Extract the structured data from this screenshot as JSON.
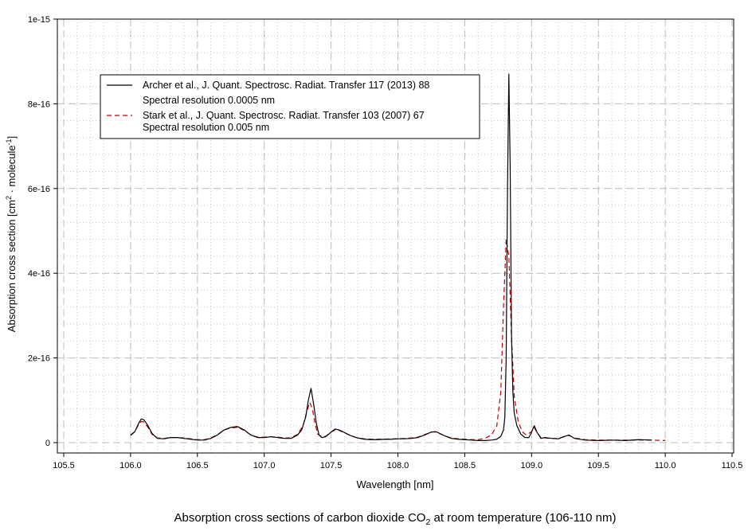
{
  "chart_data": {
    "type": "line",
    "title": "",
    "xlabel": "Wavelength [nm]",
    "ylabel": {
      "part1": "Absorption cross section [cm",
      "sup1": "2",
      "part2": " · molecule",
      "sup2": "-1",
      "part3": "]"
    },
    "xlim": [
      105.5,
      110.5
    ],
    "ylim": [
      0,
      1e-15
    ],
    "x_ticks": [
      105.5,
      106.0,
      106.5,
      107.0,
      107.5,
      108.0,
      108.5,
      109.0,
      109.5,
      110.0,
      110.5
    ],
    "x_tick_labels": [
      "105.5",
      "106.0",
      "106.5",
      "107.0",
      "107.5",
      "108.0",
      "108.5",
      "109.0",
      "109.5",
      "110.0",
      "110.5"
    ],
    "y_ticks": [
      0,
      2e-16,
      4e-16,
      6e-16,
      8e-16,
      1e-15
    ],
    "y_tick_labels": [
      "0",
      "2e-16",
      "4e-16",
      "6e-16",
      "8e-16",
      "1e-15"
    ],
    "grid": true,
    "legend_position": "top-left",
    "series": [
      {
        "name": "Archer et al., J. Quant. Spectrosc. Radiat. Transfer 117 (2013) 88",
        "note": "Spectral resolution 0.0005 nm",
        "color": "#000000",
        "dash": "solid",
        "x": [
          106.0,
          106.03,
          106.06,
          106.08,
          106.1,
          106.13,
          106.16,
          106.2,
          106.25,
          106.3,
          106.35,
          106.4,
          106.45,
          106.5,
          106.55,
          106.6,
          106.65,
          106.7,
          106.75,
          106.8,
          106.85,
          106.9,
          106.95,
          107.0,
          107.05,
          107.1,
          107.15,
          107.2,
          107.25,
          107.28,
          107.31,
          107.33,
          107.35,
          107.37,
          107.39,
          107.41,
          107.43,
          107.46,
          107.5,
          107.53,
          107.56,
          107.6,
          107.65,
          107.7,
          107.75,
          107.8,
          107.85,
          107.9,
          107.95,
          108.0,
          108.05,
          108.1,
          108.15,
          108.2,
          108.25,
          108.28,
          108.3,
          108.35,
          108.4,
          108.45,
          108.5,
          108.55,
          108.6,
          108.65,
          108.7,
          108.74,
          108.77,
          108.79,
          108.8,
          108.81,
          108.82,
          108.83,
          108.84,
          108.85,
          108.86,
          108.87,
          108.89,
          108.92,
          108.95,
          108.98,
          109.0,
          109.02,
          109.04,
          109.07,
          109.1,
          109.15,
          109.2,
          109.25,
          109.28,
          109.32,
          109.4,
          109.5,
          109.6,
          109.7,
          109.8,
          109.9
        ],
        "y": [
          1.7e-17,
          2.5e-17,
          4.5e-17,
          5.6e-17,
          5.4e-17,
          4e-17,
          2.2e-17,
          1e-17,
          9e-18,
          1.2e-17,
          1.2e-17,
          1e-17,
          8e-18,
          6e-18,
          6e-18,
          1e-17,
          1.8e-17,
          3e-17,
          3.6e-17,
          3.8e-17,
          3e-17,
          1.8e-17,
          1.2e-17,
          1.2e-17,
          1.4e-17,
          1.2e-17,
          1e-17,
          1e-17,
          1.8e-17,
          3e-17,
          6e-17,
          1e-16,
          1.28e-16,
          9e-17,
          4.5e-17,
          1.8e-17,
          1.2e-17,
          1.4e-17,
          2.5e-17,
          3.2e-17,
          3e-17,
          2.4e-17,
          1.6e-17,
          1.1e-17,
          8e-18,
          7e-18,
          7e-18,
          8e-18,
          8e-18,
          9e-18,
          9e-18,
          1e-17,
          1.2e-17,
          1.8e-17,
          2.5e-17,
          2.6e-17,
          2.4e-17,
          1.6e-17,
          1e-17,
          8e-18,
          7e-18,
          6e-18,
          5e-18,
          5e-18,
          6e-18,
          8e-18,
          1.5e-17,
          3e-17,
          6e-17,
          2e-16,
          6e-16,
          8.7e-16,
          6.5e-16,
          2.5e-16,
          1.2e-16,
          7e-17,
          4e-17,
          2e-17,
          1.2e-17,
          1.2e-17,
          2.5e-17,
          4e-17,
          2.5e-17,
          1e-17,
          1.2e-17,
          1e-17,
          9e-18,
          1.5e-17,
          1.8e-17,
          1e-17,
          6e-18,
          5e-18,
          6e-18,
          5e-18,
          7e-18,
          6e-18
        ]
      },
      {
        "name": "Stark et al., J. Quant. Spectrosc. Radiat. Transfer 103 (2007) 67",
        "note": "Spectral resolution 0.005 nm",
        "color": "#c00000",
        "dash": "dashed",
        "x": [
          106.0,
          106.03,
          106.06,
          106.08,
          106.1,
          106.13,
          106.16,
          106.2,
          106.25,
          106.3,
          106.35,
          106.4,
          106.45,
          106.5,
          106.55,
          106.6,
          106.65,
          106.7,
          106.75,
          106.8,
          106.85,
          106.9,
          106.95,
          107.0,
          107.05,
          107.1,
          107.15,
          107.2,
          107.25,
          107.29,
          107.32,
          107.34,
          107.36,
          107.38,
          107.4,
          107.43,
          107.46,
          107.5,
          107.53,
          107.56,
          107.6,
          107.65,
          107.7,
          107.75,
          107.8,
          107.85,
          107.9,
          107.95,
          108.0,
          108.05,
          108.1,
          108.15,
          108.2,
          108.25,
          108.28,
          108.3,
          108.35,
          108.4,
          108.45,
          108.5,
          108.55,
          108.6,
          108.65,
          108.7,
          108.74,
          108.77,
          108.79,
          108.81,
          108.83,
          108.85,
          108.87,
          108.9,
          108.93,
          108.96,
          109.0,
          109.02,
          109.04,
          109.07,
          109.1,
          109.15,
          109.2,
          109.25,
          109.28,
          109.32,
          109.4,
          109.5,
          109.6,
          109.7,
          109.8,
          109.9,
          110.0
        ],
        "y": [
          1.8e-17,
          2.6e-17,
          4.2e-17,
          5e-17,
          4.9e-17,
          3.6e-17,
          2e-17,
          1.1e-17,
          1e-17,
          1.2e-17,
          1.2e-17,
          1.1e-17,
          9e-18,
          7e-18,
          7e-18,
          1.1e-17,
          1.9e-17,
          3e-17,
          3.5e-17,
          3.6e-17,
          2.9e-17,
          1.8e-17,
          1.3e-17,
          1.3e-17,
          1.4e-17,
          1.3e-17,
          1.1e-17,
          1.1e-17,
          2e-17,
          4e-17,
          7.5e-17,
          9.5e-17,
          8e-17,
          4.5e-17,
          2e-17,
          1.4e-17,
          1.5e-17,
          2.5e-17,
          3e-17,
          2.9e-17,
          2.3e-17,
          1.6e-17,
          1.1e-17,
          9e-18,
          8e-18,
          8e-18,
          8e-18,
          9e-18,
          9e-18,
          1e-17,
          1.1e-17,
          1.3e-17,
          1.9e-17,
          2.5e-17,
          2.5e-17,
          2.3e-17,
          1.6e-17,
          1.1e-17,
          9e-18,
          8e-18,
          7e-18,
          7e-18,
          1e-17,
          1.8e-17,
          4e-17,
          1.2e-16,
          3.2e-16,
          4.8e-16,
          4.4e-16,
          2.5e-16,
          1.1e-16,
          5e-17,
          2.6e-17,
          1.8e-17,
          2.6e-17,
          3.6e-17,
          2.4e-17,
          1.2e-17,
          1.1e-17,
          1e-17,
          1e-17,
          1.5e-17,
          1.7e-17,
          1.1e-17,
          7e-18,
          6e-18,
          6e-18,
          6e-18,
          6e-18,
          6e-18,
          5e-18
        ]
      }
    ],
    "caption": {
      "before": "Absorption cross sections of carbon dioxide CO",
      "sub": "2",
      "after": " at room temperature (106-110 nm)"
    }
  }
}
